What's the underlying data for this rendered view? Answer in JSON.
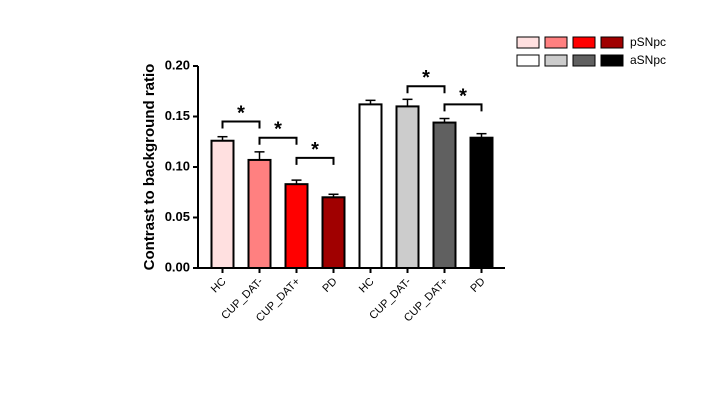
{
  "chart_data": {
    "type": "bar",
    "ylabel": "Contrast to background ratio",
    "categories": [
      "HC",
      "CUP_DAT-",
      "CUP_DAT+",
      "PD"
    ],
    "series": [
      {
        "name": "pSNpc",
        "colors": [
          "#ffe0e0",
          "#ff8080",
          "#ff0000",
          "#a00000"
        ],
        "values": [
          0.126,
          0.107,
          0.083,
          0.07
        ],
        "errors": [
          0.004,
          0.008,
          0.004,
          0.003
        ]
      },
      {
        "name": "aSNpc",
        "colors": [
          "#ffffff",
          "#cccccc",
          "#606060",
          "#000000"
        ],
        "values": [
          0.162,
          0.16,
          0.144,
          0.129
        ],
        "errors": [
          0.004,
          0.007,
          0.004,
          0.004
        ]
      }
    ],
    "ylim": [
      0,
      0.2
    ],
    "yticks": [
      {
        "value": 0,
        "label": "0.00"
      },
      0.05,
      {
        "value": 0.1,
        "label": "0.10"
      },
      0.15,
      {
        "value": 0.2,
        "label": "0.20"
      }
    ],
    "comparisons": [
      {
        "series": "pSNpc",
        "between": [
          "HC",
          "CUP_DAT-"
        ],
        "y": 0.145,
        "label": "*"
      },
      {
        "series": "pSNpc",
        "between": [
          "CUP_DAT-",
          "CUP_DAT+"
        ],
        "y": 0.129,
        "label": "*"
      },
      {
        "series": "pSNpc",
        "between": [
          "CUP_DAT+",
          "PD"
        ],
        "y": 0.109,
        "label": "*"
      },
      {
        "series": "aSNpc",
        "between": [
          "CUP_DAT-",
          "CUP_DAT+"
        ],
        "y": 0.18,
        "label": "*"
      },
      {
        "series": "aSNpc",
        "between": [
          "CUP_DAT+",
          "PD"
        ],
        "y": 0.162,
        "label": "*"
      }
    ],
    "legend": "top-right"
  }
}
